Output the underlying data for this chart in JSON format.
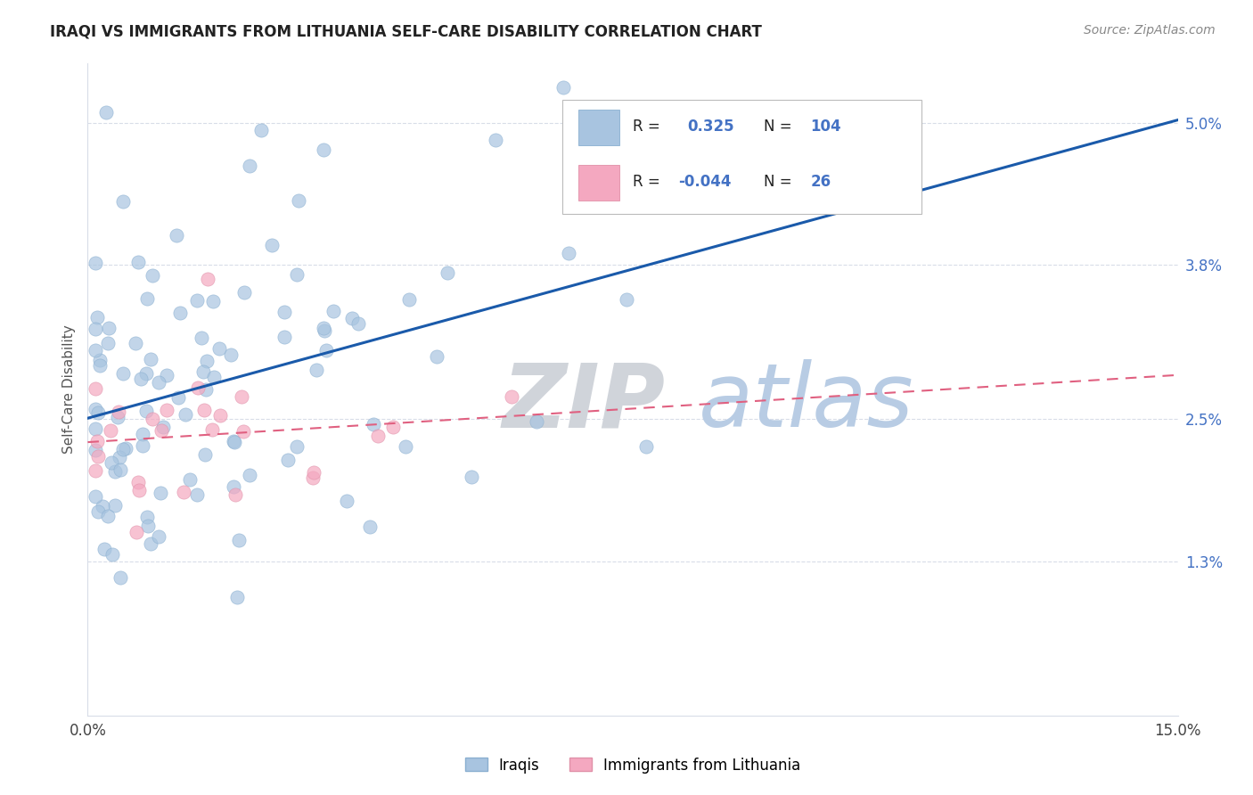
{
  "title": "IRAQI VS IMMIGRANTS FROM LITHUANIA SELF-CARE DISABILITY CORRELATION CHART",
  "source": "Source: ZipAtlas.com",
  "ylabel": "Self-Care Disability",
  "xlim": [
    0.0,
    0.15
  ],
  "ylim": [
    0.0,
    0.055
  ],
  "iraqis_color": "#a8c4e0",
  "iraqis_edge": "#8aafd0",
  "lithuania_color": "#f4a8c0",
  "lithuania_edge": "#e090a8",
  "trend_iraqi_color": "#1a5aaa",
  "trend_lithuania_color": "#e06080",
  "iraqi_r": 0.325,
  "iraqi_n": 104,
  "lithuania_r": -0.044,
  "lithuania_n": 26,
  "grid_color": "#d8dde8",
  "watermark_zip_color": "#d0d4da",
  "watermark_atlas_color": "#b8cce4",
  "right_tick_color": "#4472c4"
}
